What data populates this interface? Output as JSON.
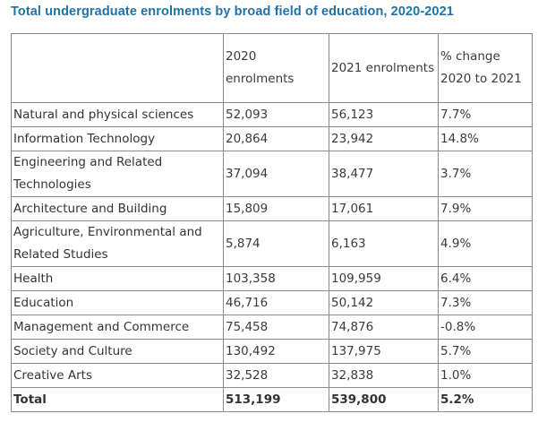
{
  "title": "Total undergraduate enrolments by broad field of education, 2020-2021",
  "table": {
    "headers": [
      "",
      "2020 enrolments",
      "2021 enrolments",
      "% change 2020 to 2021"
    ],
    "rows": [
      {
        "field": "Natural and physical sciences",
        "y2020": "52,093",
        "y2021": "56,123",
        "change": "7.7%"
      },
      {
        "field": "Information Technology",
        "y2020": "20,864",
        "y2021": "23,942",
        "change": "14.8%"
      },
      {
        "field": "Engineering and Related Technologies",
        "y2020": "37,094",
        "y2021": "38,477",
        "change": "3.7%"
      },
      {
        "field": "Architecture and Building",
        "y2020": "15,809",
        "y2021": "17,061",
        "change": "7.9%"
      },
      {
        "field": "Agriculture, Environmental and Related Studies",
        "y2020": "5,874",
        "y2021": "6,163",
        "change": "4.9%"
      },
      {
        "field": "Health",
        "y2020": "103,358",
        "y2021": "109,959",
        "change": "6.4%"
      },
      {
        "field": "Education",
        "y2020": "46,716",
        "y2021": "50,142",
        "change": "7.3%"
      },
      {
        "field": "Management and Commerce",
        "y2020": "75,458",
        "y2021": "74,876",
        "change": "-0.8%"
      },
      {
        "field": "Society and Culture",
        "y2020": "130,492",
        "y2021": "137,975",
        "change": "5.7%"
      },
      {
        "field": "Creative Arts",
        "y2020": "32,528",
        "y2021": "32,838",
        "change": "1.0%"
      }
    ],
    "total": {
      "field": "Total",
      "y2020": "513,199",
      "y2021": "539,800",
      "change": "5.2%"
    }
  },
  "colors": {
    "title": "#1e73a8",
    "border": "#8a8a8a",
    "text": "#3a3a3a"
  }
}
